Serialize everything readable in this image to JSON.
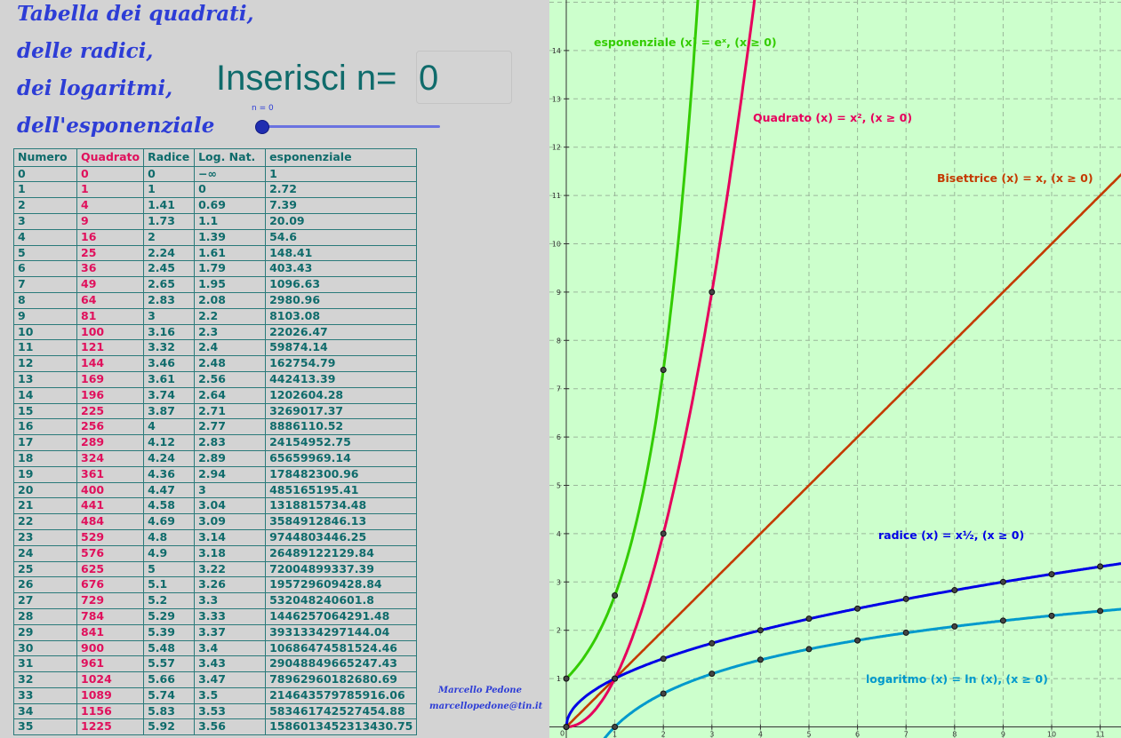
{
  "title": {
    "line1": "Tabella dei quadrati,",
    "line2": "delle radici,",
    "line3": "dei logaritmi,",
    "line4": "dell'esponenziale"
  },
  "input": {
    "label": "Inserisci n=",
    "value": "0"
  },
  "slider": {
    "label": "n = 0",
    "value": 0
  },
  "table": {
    "headers": [
      "Numero",
      "Quadrato",
      "Radice",
      "Log. Nat.",
      "esponenziale"
    ],
    "rows": [
      [
        "0",
        "0",
        "0",
        "−∞",
        "1"
      ],
      [
        "1",
        "1",
        "1",
        "0",
        "2.72"
      ],
      [
        "2",
        "4",
        "1.41",
        "0.69",
        "7.39"
      ],
      [
        "3",
        "9",
        "1.73",
        "1.1",
        "20.09"
      ],
      [
        "4",
        "16",
        "2",
        "1.39",
        "54.6"
      ],
      [
        "5",
        "25",
        "2.24",
        "1.61",
        "148.41"
      ],
      [
        "6",
        "36",
        "2.45",
        "1.79",
        "403.43"
      ],
      [
        "7",
        "49",
        "2.65",
        "1.95",
        "1096.63"
      ],
      [
        "8",
        "64",
        "2.83",
        "2.08",
        "2980.96"
      ],
      [
        "9",
        "81",
        "3",
        "2.2",
        "8103.08"
      ],
      [
        "10",
        "100",
        "3.16",
        "2.3",
        "22026.47"
      ],
      [
        "11",
        "121",
        "3.32",
        "2.4",
        "59874.14"
      ],
      [
        "12",
        "144",
        "3.46",
        "2.48",
        "162754.79"
      ],
      [
        "13",
        "169",
        "3.61",
        "2.56",
        "442413.39"
      ],
      [
        "14",
        "196",
        "3.74",
        "2.64",
        "1202604.28"
      ],
      [
        "15",
        "225",
        "3.87",
        "2.71",
        "3269017.37"
      ],
      [
        "16",
        "256",
        "4",
        "2.77",
        "8886110.52"
      ],
      [
        "17",
        "289",
        "4.12",
        "2.83",
        "24154952.75"
      ],
      [
        "18",
        "324",
        "4.24",
        "2.89",
        "65659969.14"
      ],
      [
        "19",
        "361",
        "4.36",
        "2.94",
        "178482300.96"
      ],
      [
        "20",
        "400",
        "4.47",
        "3",
        "485165195.41"
      ],
      [
        "21",
        "441",
        "4.58",
        "3.04",
        "1318815734.48"
      ],
      [
        "22",
        "484",
        "4.69",
        "3.09",
        "3584912846.13"
      ],
      [
        "23",
        "529",
        "4.8",
        "3.14",
        "9744803446.25"
      ],
      [
        "24",
        "576",
        "4.9",
        "3.18",
        "26489122129.84"
      ],
      [
        "25",
        "625",
        "5",
        "3.22",
        "72004899337.39"
      ],
      [
        "26",
        "676",
        "5.1",
        "3.26",
        "195729609428.84"
      ],
      [
        "27",
        "729",
        "5.2",
        "3.3",
        "532048240601.8"
      ],
      [
        "28",
        "784",
        "5.29",
        "3.33",
        "1446257064291.48"
      ],
      [
        "29",
        "841",
        "5.39",
        "3.37",
        "3931334297144.04"
      ],
      [
        "30",
        "900",
        "5.48",
        "3.4",
        "10686474581524.46"
      ],
      [
        "31",
        "961",
        "5.57",
        "3.43",
        "29048849665247.43"
      ],
      [
        "32",
        "1024",
        "5.66",
        "3.47",
        "78962960182680.69"
      ],
      [
        "33",
        "1089",
        "5.74",
        "3.5",
        "214643579785916.06"
      ],
      [
        "34",
        "1156",
        "5.83",
        "3.53",
        "583461742527454.88"
      ],
      [
        "35",
        "1225",
        "5.92",
        "3.56",
        "1586013452313430.75"
      ]
    ]
  },
  "credits": {
    "name": "Marcello Pedone",
    "email": "marcellopedone@tin.it"
  },
  "graph": {
    "x_ticks": [
      "1",
      "2",
      "3",
      "4",
      "5",
      "6",
      "7",
      "8",
      "9",
      "10",
      "11"
    ],
    "y_ticks": [
      "1",
      "2",
      "3",
      "4",
      "5",
      "6",
      "7",
      "8",
      "9",
      "10",
      "11",
      "12",
      "13",
      "14"
    ],
    "origin_label": "0",
    "xlim": [
      0,
      11.6
    ],
    "ylim": [
      0,
      15.1
    ],
    "grid": true,
    "labels": {
      "exp": "esponenziale (x) = eˣ,    (x ≥ 0)",
      "square": "Quadrato (x) = x²,    (x ≥ 0)",
      "bisector": "Bisettrice (x) = x,    (x ≥ 0)",
      "root": "radice (x) = x½,    (x ≥ 0)",
      "log": "logaritmo (x) = ln (x),    (x ≥ 0)"
    },
    "colors": {
      "exp": "#33cc00",
      "square": "#e6005c",
      "bisector": "#c43a00",
      "root": "#0000e6",
      "log": "#0099cc",
      "grid": "#9ab79a",
      "axis": "#333333"
    },
    "points": {
      "exp": [
        [
          0,
          1
        ],
        [
          1,
          2.72
        ],
        [
          2,
          7.39
        ]
      ],
      "square": [
        [
          0,
          0
        ],
        [
          1,
          1
        ],
        [
          2,
          4
        ],
        [
          3,
          9
        ]
      ],
      "root": [
        [
          0,
          0
        ],
        [
          1,
          1
        ],
        [
          2,
          1.41
        ],
        [
          3,
          1.73
        ],
        [
          4,
          2
        ],
        [
          5,
          2.24
        ],
        [
          6,
          2.45
        ],
        [
          7,
          2.65
        ],
        [
          8,
          2.83
        ],
        [
          9,
          3
        ],
        [
          10,
          3.16
        ],
        [
          11,
          3.32
        ]
      ],
      "log": [
        [
          1,
          0
        ],
        [
          2,
          0.69
        ],
        [
          3,
          1.1
        ],
        [
          4,
          1.39
        ],
        [
          5,
          1.61
        ],
        [
          6,
          1.79
        ],
        [
          7,
          1.95
        ],
        [
          8,
          2.08
        ],
        [
          9,
          2.2
        ],
        [
          10,
          2.3
        ],
        [
          11,
          2.4
        ]
      ]
    }
  }
}
